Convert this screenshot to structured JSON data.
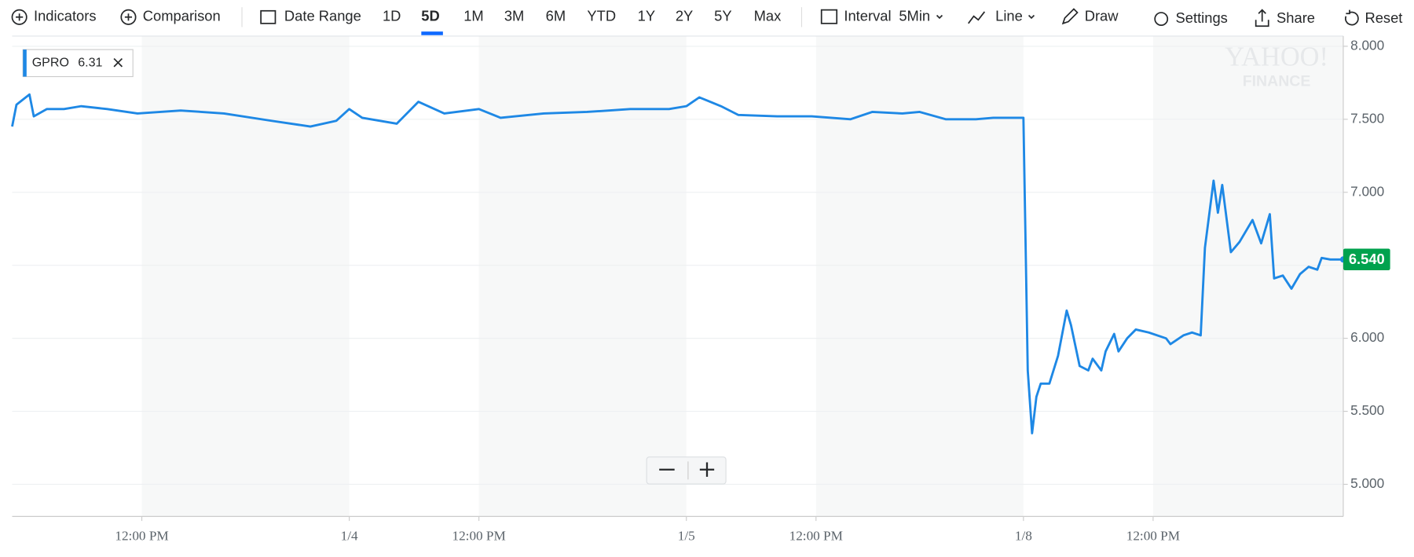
{
  "toolbar": {
    "items": [
      "Indicators",
      "Comparison",
      "Date Range",
      "1D",
      "5D",
      "1M",
      "3M",
      "6M",
      "YTD",
      "1Y",
      "2Y",
      "5Y",
      "Max",
      "Interval",
      "5Min",
      "Line",
      "Draw",
      "Settings",
      "Share",
      "Reset"
    ]
  },
  "watermark": {
    "line1": "YAHOO!",
    "line2": "FINANCE"
  },
  "chart_data": {
    "type": "line",
    "series": [
      {
        "name": "GPRO",
        "color": "#1e88e5",
        "x": [
          0,
          1,
          4,
          5,
          8,
          12,
          16,
          22,
          29,
          39,
          49,
          60,
          69,
          75,
          78,
          81,
          89,
          94,
          100,
          108,
          113,
          123,
          133,
          143,
          152,
          156,
          159,
          164,
          168,
          177,
          185,
          194,
          199,
          206,
          210,
          216,
          223,
          227,
          234,
          235,
          236,
          237,
          238,
          240,
          242,
          244,
          245,
          247,
          249,
          250,
          252,
          253,
          255,
          256,
          258,
          260,
          263,
          267,
          268,
          271,
          273,
          275,
          276,
          278,
          279,
          280,
          282,
          284,
          287,
          289,
          291,
          292,
          294,
          296,
          298,
          300,
          302,
          303,
          305,
          308
        ],
        "values": [
          7.45,
          7.6,
          7.67,
          7.52,
          7.57,
          7.57,
          7.59,
          7.57,
          7.54,
          7.56,
          7.54,
          7.49,
          7.45,
          7.49,
          7.57,
          7.51,
          7.47,
          7.62,
          7.54,
          7.57,
          7.51,
          7.54,
          7.55,
          7.57,
          7.57,
          7.59,
          7.65,
          7.59,
          7.53,
          7.52,
          7.52,
          7.5,
          7.55,
          7.54,
          7.55,
          7.5,
          7.5,
          7.51,
          7.51,
          5.78,
          5.35,
          5.6,
          5.69,
          5.69,
          5.88,
          6.19,
          6.09,
          5.81,
          5.78,
          5.86,
          5.78,
          5.91,
          6.03,
          5.91,
          6.0,
          6.06,
          6.04,
          6.0,
          5.96,
          6.02,
          6.04,
          6.02,
          6.62,
          7.08,
          6.86,
          7.05,
          6.59,
          6.66,
          6.81,
          6.65,
          6.85,
          6.41,
          6.43,
          6.34,
          6.44,
          6.49,
          6.47,
          6.55,
          6.54,
          6.54
        ]
      }
    ],
    "legend_value": 6.31,
    "current_price": {
      "value": 6.54,
      "label": "6.540",
      "color": "#00a24e"
    },
    "xlim": [
      0,
      308
    ],
    "xticks": [
      {
        "value": 30,
        "label": "12:00 PM"
      },
      {
        "value": 78,
        "label": "1/4"
      },
      {
        "value": 108,
        "label": "12:00 PM"
      },
      {
        "value": 156,
        "label": "1/5"
      },
      {
        "value": 186,
        "label": "12:00 PM"
      },
      {
        "value": 234,
        "label": "1/8"
      },
      {
        "value": 264,
        "label": "12:00 PM"
      }
    ],
    "ylim": [
      4.78,
      8.07
    ],
    "yticks": [
      {
        "value": 5,
        "label": "5.000"
      },
      {
        "value": 5.5,
        "label": "5.500"
      },
      {
        "value": 6,
        "label": "6.000"
      },
      {
        "value": 6.5,
        "label": "6.500"
      },
      {
        "value": 7,
        "label": "7.000"
      },
      {
        "value": 7.5,
        "label": "7.500"
      },
      {
        "value": 8,
        "label": "8.000"
      }
    ],
    "grid": true
  }
}
